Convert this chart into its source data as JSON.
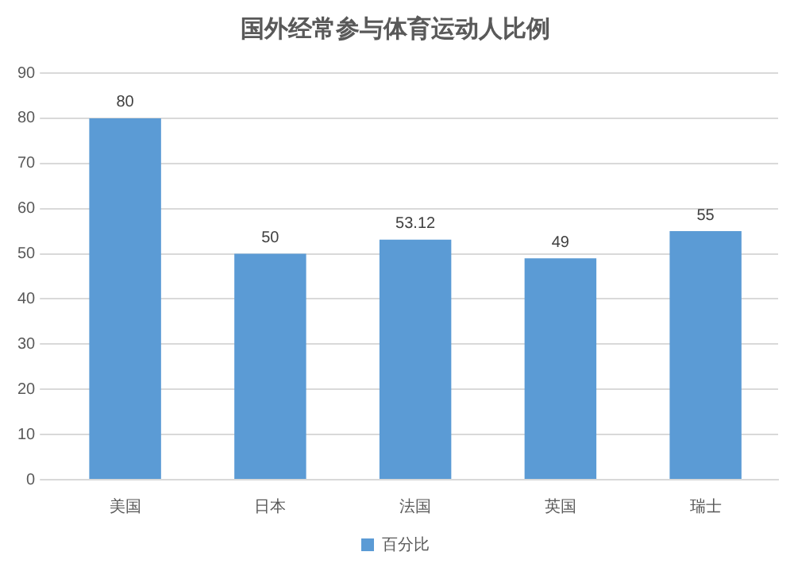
{
  "chart_data": {
    "type": "bar",
    "title": "国外经常参与体育运动人比例",
    "categories": [
      "美国",
      "日本",
      "法国",
      "英国",
      "瑞士"
    ],
    "series": [
      {
        "name": "百分比",
        "color": "#5b9bd5",
        "values": [
          80,
          50,
          53.12,
          49,
          55
        ]
      }
    ],
    "ylim": [
      0,
      90
    ],
    "yticks": [
      0,
      10,
      20,
      30,
      40,
      50,
      60,
      70,
      80,
      90
    ],
    "grid": "y",
    "legend": "bottom",
    "data_labels": true
  }
}
